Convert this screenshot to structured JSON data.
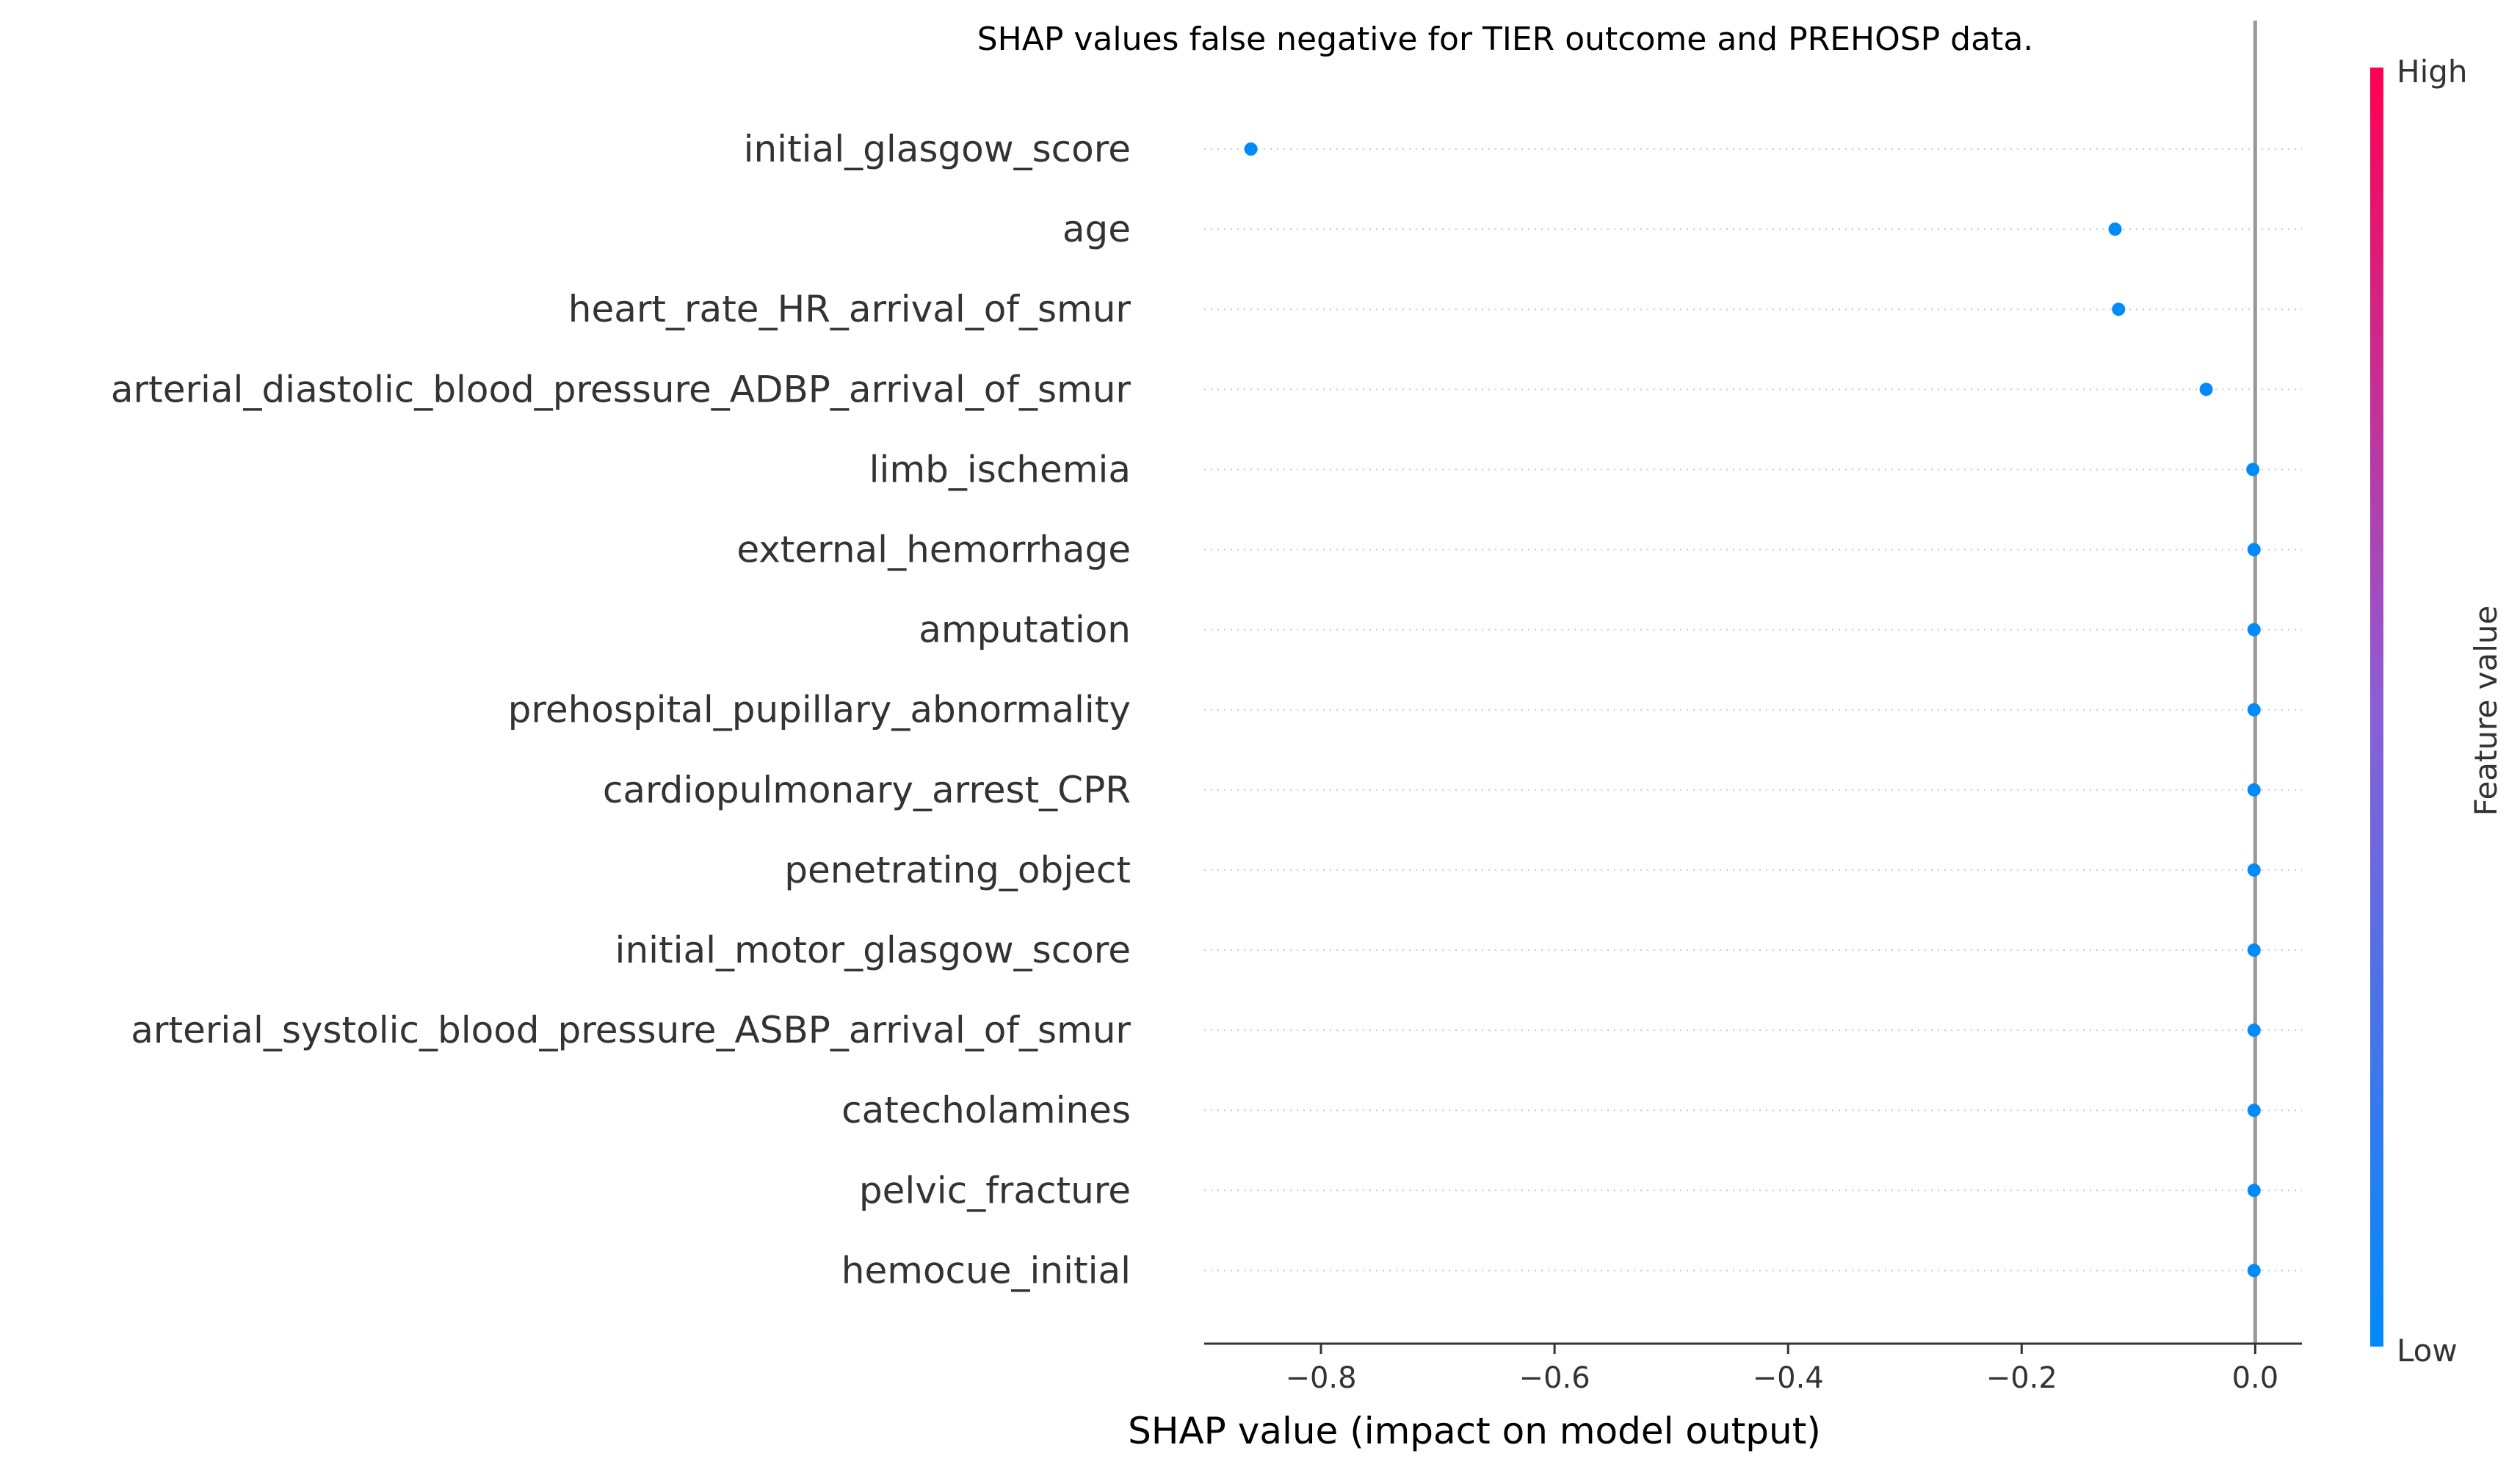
{
  "chart_data": {
    "type": "scatter",
    "title": "SHAP values false negative for TIER outcome and PREHOSP data.",
    "xlabel": "SHAP value (impact on model output)",
    "ylabel": "",
    "xlim": [
      -0.9,
      0.04
    ],
    "xticks": [
      -0.8,
      -0.6,
      -0.4,
      -0.2,
      0.0
    ],
    "xtick_labels": [
      "−0.8",
      "−0.6",
      "−0.4",
      "−0.2",
      "0.0"
    ],
    "grid": false,
    "legend": "none",
    "features": [
      "initial_glasgow_score",
      "age",
      "heart_rate_HR_arrival_of_smur",
      "arterial_diastolic_blood_pressure_ADBP_arrival_of_smur",
      "limb_ischemia",
      "external_hemorrhage",
      "amputation",
      "prehospital_pupillary_abnormality",
      "cardiopulmonary_arrest_CPR",
      "penetrating_object",
      "initial_motor_glasgow_score",
      "arterial_systolic_blood_pressure_ASBP_arrival_of_smur",
      "catecholamines",
      "pelvic_fracture",
      "hemocue_initial"
    ],
    "points": [
      {
        "feature": "initial_glasgow_score",
        "shap": -0.86,
        "feature_value": "low"
      },
      {
        "feature": "age",
        "shap": -0.12,
        "feature_value": "low"
      },
      {
        "feature": "heart_rate_HR_arrival_of_smur",
        "shap": -0.117,
        "feature_value": "low"
      },
      {
        "feature": "arterial_diastolic_blood_pressure_ADBP_arrival_of_smur",
        "shap": -0.042,
        "feature_value": "low"
      },
      {
        "feature": "limb_ischemia",
        "shap": -0.002,
        "feature_value": "low"
      },
      {
        "feature": "external_hemorrhage",
        "shap": -0.001,
        "feature_value": "low"
      },
      {
        "feature": "amputation",
        "shap": -0.001,
        "feature_value": "low"
      },
      {
        "feature": "prehospital_pupillary_abnormality",
        "shap": -0.001,
        "feature_value": "low"
      },
      {
        "feature": "cardiopulmonary_arrest_CPR",
        "shap": -0.001,
        "feature_value": "low"
      },
      {
        "feature": "penetrating_object",
        "shap": -0.001,
        "feature_value": "low"
      },
      {
        "feature": "initial_motor_glasgow_score",
        "shap": -0.001,
        "feature_value": "low"
      },
      {
        "feature": "arterial_systolic_blood_pressure_ASBP_arrival_of_smur",
        "shap": -0.001,
        "feature_value": "low"
      },
      {
        "feature": "catecholamines",
        "shap": -0.001,
        "feature_value": "low"
      },
      {
        "feature": "pelvic_fracture",
        "shap": -0.001,
        "feature_value": "low"
      },
      {
        "feature": "hemocue_initial",
        "shap": -0.001,
        "feature_value": "low"
      }
    ],
    "colorbar": {
      "label": "Feature value",
      "high_label": "High",
      "low_label": "Low",
      "low_color": "#008bfb",
      "mid_color": "#8c5ed6",
      "high_color": "#ff0052"
    },
    "zero_line_color": "#999999"
  }
}
